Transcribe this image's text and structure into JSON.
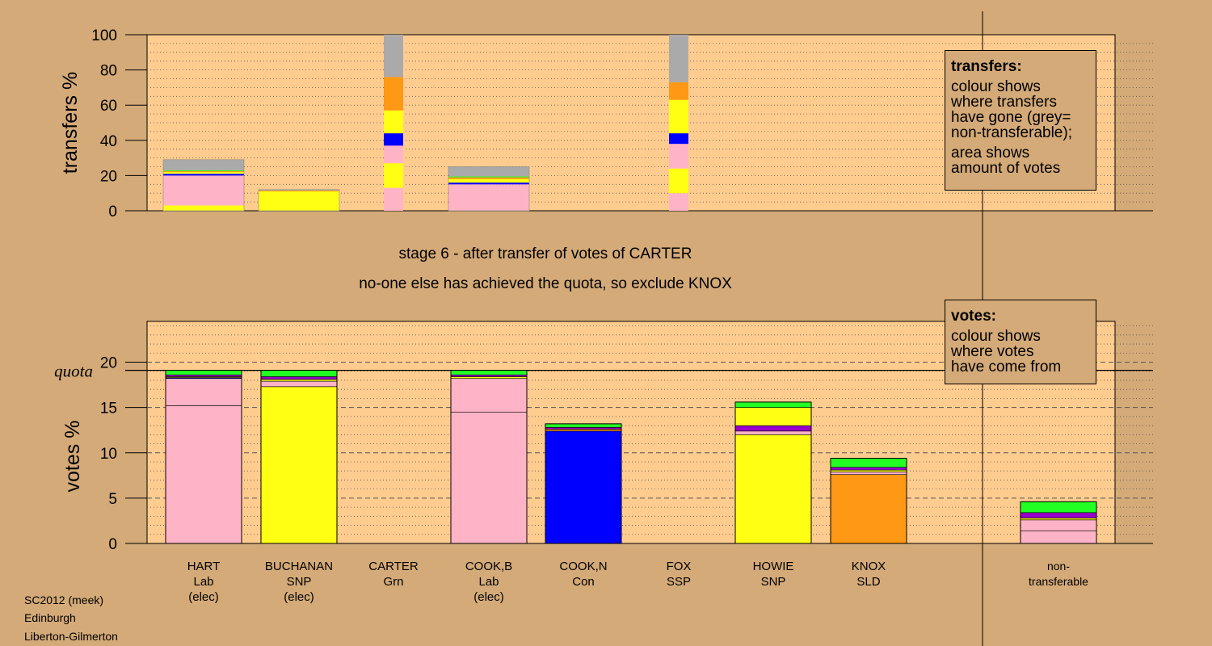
{
  "colors": {
    "page_bg": "#d4aa78",
    "plot_bg": "#ffcc8f",
    "Lab": "#ffb3c6",
    "SNP": "#ffff14",
    "Con": "#0000ff",
    "SLD": "#ff9814",
    "Grn": "#22ff22",
    "SSP": "#9900cc",
    "nontransferable": "#aaaaaa"
  },
  "texts": {
    "stage": "stage 6 - after transfer of votes of CARTER",
    "action": "no-one else has achieved the quota, so exclude KNOX",
    "footer": [
      "SC2012 (meek)",
      "Edinburgh",
      "Liberton-Gilmerton"
    ],
    "quota_label": "quota"
  },
  "legend_transfers": {
    "title": "transfers:",
    "lines": [
      "colour shows",
      "where transfers",
      "have gone (grey=",
      "non-transferable);"
    ],
    "lines2": [
      "area shows",
      "amount of votes"
    ]
  },
  "legend_votes": {
    "title": "votes:",
    "lines": [
      "colour shows",
      "where votes",
      "have come from"
    ]
  },
  "candidates": [
    {
      "name": "HART",
      "party": "Lab",
      "status": "(elec)"
    },
    {
      "name": "BUCHANAN",
      "party": "SNP",
      "status": "(elec)"
    },
    {
      "name": "CARTER",
      "party": "Grn",
      "status": ""
    },
    {
      "name": "COOK,B",
      "party": "Lab",
      "status": "(elec)"
    },
    {
      "name": "COOK,N",
      "party": "Con",
      "status": ""
    },
    {
      "name": "FOX",
      "party": "SSP",
      "status": ""
    },
    {
      "name": "HOWIE",
      "party": "SNP",
      "status": ""
    },
    {
      "name": "KNOX",
      "party": "SLD",
      "status": ""
    },
    {
      "name": "non-",
      "party": "transferable",
      "status": ""
    }
  ],
  "chart_data": [
    {
      "type": "bar",
      "title": "",
      "ylabel": "transfers %",
      "ylim": [
        0,
        100
      ],
      "yticks": [
        0,
        20,
        40,
        60,
        80,
        100
      ],
      "grid": "dotted every 5",
      "legend": "top-right",
      "bars": [
        {
          "candidate": "HART",
          "width": "wide",
          "segments": [
            {
              "color": "SNP",
              "from": 0,
              "to": 3
            },
            {
              "color": "Lab",
              "from": 3,
              "to": 20
            },
            {
              "color": "Con",
              "from": 20,
              "to": 21
            },
            {
              "color": "SNP",
              "from": 21,
              "to": 22
            },
            {
              "color": "SLD",
              "from": 22,
              "to": 22.5
            },
            {
              "color": "Grn",
              "from": 22.5,
              "to": 23
            },
            {
              "color": "nontransferable",
              "from": 23,
              "to": 29
            }
          ]
        },
        {
          "candidate": "BUCHANAN",
          "width": "wide",
          "segments": [
            {
              "color": "SNP",
              "from": 0,
              "to": 11
            },
            {
              "color": "SLD",
              "from": 11,
              "to": 11.5
            },
            {
              "color": "nontransferable",
              "from": 11.5,
              "to": 12
            }
          ]
        },
        {
          "candidate": "CARTER",
          "width": "narrow",
          "segments": [
            {
              "color": "Lab",
              "from": 0,
              "to": 13
            },
            {
              "color": "SNP",
              "from": 13,
              "to": 27
            },
            {
              "color": "Lab",
              "from": 27,
              "to": 37
            },
            {
              "color": "Con",
              "from": 37,
              "to": 44
            },
            {
              "color": "SNP",
              "from": 44,
              "to": 57
            },
            {
              "color": "SLD",
              "from": 57,
              "to": 76
            },
            {
              "color": "nontransferable",
              "from": 76,
              "to": 100
            }
          ]
        },
        {
          "candidate": "COOK,B",
          "width": "wide",
          "segments": [
            {
              "color": "Lab",
              "from": 0,
              "to": 15
            },
            {
              "color": "Con",
              "from": 15,
              "to": 16
            },
            {
              "color": "SNP",
              "from": 16,
              "to": 18
            },
            {
              "color": "SLD",
              "from": 18,
              "to": 19
            },
            {
              "color": "Grn",
              "from": 19,
              "to": 19.5
            },
            {
              "color": "nontransferable",
              "from": 19.5,
              "to": 25
            }
          ]
        },
        {
          "candidate": "FOX",
          "width": "narrow",
          "segments": [
            {
              "color": "Lab",
              "from": 0,
              "to": 10
            },
            {
              "color": "SNP",
              "from": 10,
              "to": 24
            },
            {
              "color": "Lab",
              "from": 24,
              "to": 38
            },
            {
              "color": "Con",
              "from": 38,
              "to": 44
            },
            {
              "color": "SNP",
              "from": 44,
              "to": 63
            },
            {
              "color": "SLD",
              "from": 63,
              "to": 73
            },
            {
              "color": "nontransferable",
              "from": 73,
              "to": 100
            }
          ]
        }
      ]
    },
    {
      "type": "bar",
      "title": "",
      "ylabel": "votes %",
      "ylim": [
        0,
        24.5
      ],
      "yticks": [
        0,
        5,
        10,
        15,
        20
      ],
      "quota": 19.1,
      "grid": "dotted every 1, dashed every 5",
      "legend": "top-right",
      "bars": [
        {
          "candidate": "HART",
          "segments": [
            {
              "color": "Lab",
              "from": 0,
              "to": 15.2
            },
            {
              "color": "Lab",
              "from": 15.2,
              "to": 18.2
            },
            {
              "color": "Con",
              "from": 18.2,
              "to": 18.3
            },
            {
              "color": "SNP",
              "from": 18.3,
              "to": 18.4
            },
            {
              "color": "SSP",
              "from": 18.4,
              "to": 18.6
            },
            {
              "color": "Grn",
              "from": 18.6,
              "to": 19.1
            }
          ]
        },
        {
          "candidate": "BUCHANAN",
          "segments": [
            {
              "color": "SNP",
              "from": 0,
              "to": 17.3
            },
            {
              "color": "Lab",
              "from": 17.3,
              "to": 17.9
            },
            {
              "color": "SNP",
              "from": 17.9,
              "to": 18.1
            },
            {
              "color": "SSP",
              "from": 18.1,
              "to": 18.4
            },
            {
              "color": "Grn",
              "from": 18.4,
              "to": 19.1
            }
          ]
        },
        {
          "candidate": "CARTER",
          "segments": []
        },
        {
          "candidate": "COOK,B",
          "segments": [
            {
              "color": "Lab",
              "from": 0,
              "to": 14.5
            },
            {
              "color": "Lab",
              "from": 14.5,
              "to": 18.2
            },
            {
              "color": "SNP",
              "from": 18.2,
              "to": 18.4
            },
            {
              "color": "SSP",
              "from": 18.4,
              "to": 18.6
            },
            {
              "color": "Grn",
              "from": 18.6,
              "to": 19.1
            }
          ]
        },
        {
          "candidate": "COOK,N",
          "segments": [
            {
              "color": "Con",
              "from": 0,
              "to": 12.4
            },
            {
              "color": "SLD",
              "from": 12.4,
              "to": 12.6
            },
            {
              "color": "SSP",
              "from": 12.6,
              "to": 12.8
            },
            {
              "color": "Grn",
              "from": 12.8,
              "to": 13.2
            }
          ]
        },
        {
          "candidate": "FOX",
          "segments": []
        },
        {
          "candidate": "HOWIE",
          "segments": [
            {
              "color": "SNP",
              "from": 0,
              "to": 12.0
            },
            {
              "color": "Lab",
              "from": 12.0,
              "to": 12.4
            },
            {
              "color": "SSP",
              "from": 12.4,
              "to": 13.0
            },
            {
              "color": "SNP",
              "from": 13.0,
              "to": 15.0
            },
            {
              "color": "Grn",
              "from": 15.0,
              "to": 15.6
            }
          ]
        },
        {
          "candidate": "KNOX",
          "segments": [
            {
              "color": "SLD",
              "from": 0,
              "to": 7.6
            },
            {
              "color": "Lab",
              "from": 7.6,
              "to": 7.9
            },
            {
              "color": "SNP",
              "from": 7.9,
              "to": 8.1
            },
            {
              "color": "SSP",
              "from": 8.1,
              "to": 8.4
            },
            {
              "color": "Grn",
              "from": 8.4,
              "to": 9.4
            }
          ]
        },
        {
          "candidate": "non-transferable",
          "segments": [
            {
              "color": "Lab",
              "from": 0,
              "to": 1.4
            },
            {
              "color": "Lab",
              "from": 1.4,
              "to": 2.6
            },
            {
              "color": "SNP",
              "from": 2.6,
              "to": 2.8
            },
            {
              "color": "SSP",
              "from": 2.8,
              "to": 3.4
            },
            {
              "color": "Grn",
              "from": 3.4,
              "to": 4.6
            }
          ]
        }
      ]
    }
  ]
}
